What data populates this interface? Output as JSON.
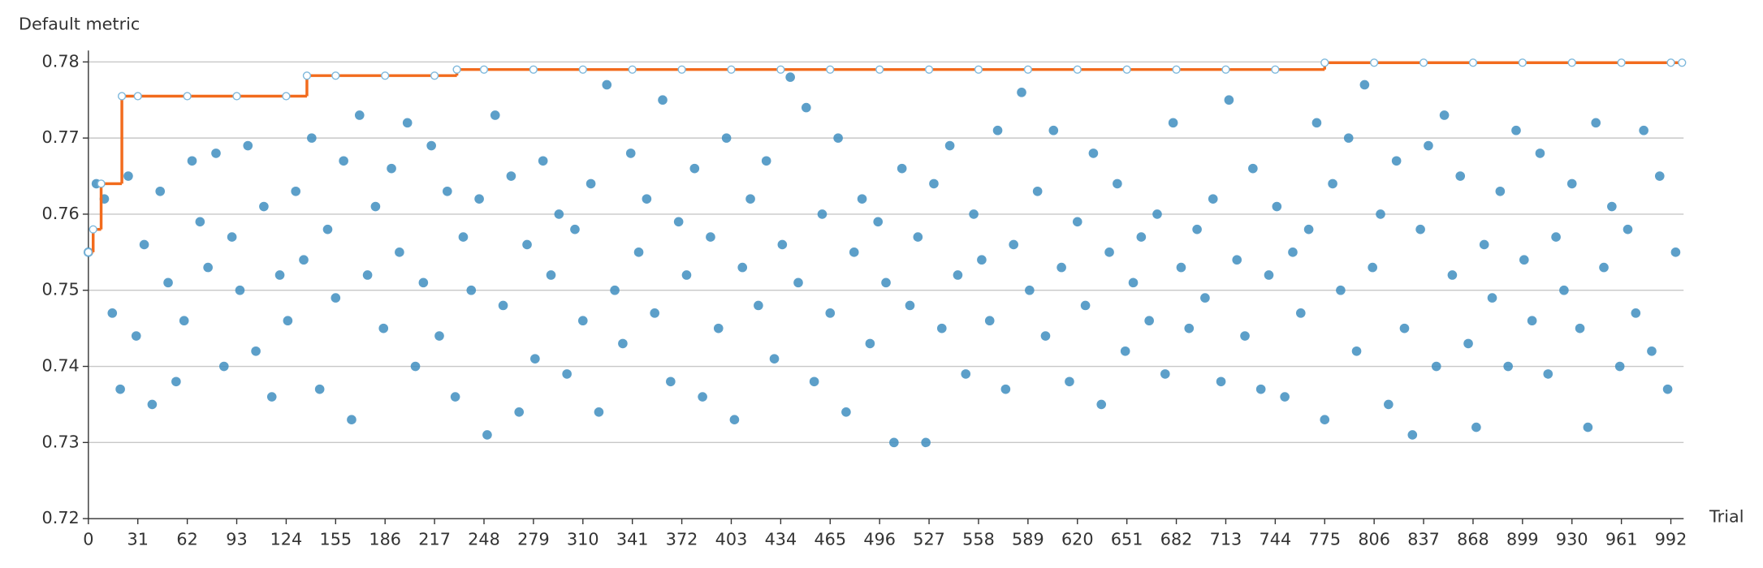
{
  "chart_data": {
    "type": "scatter",
    "y_label": "Default metric",
    "x_label": "Trial",
    "xlim": [
      0,
      1000
    ],
    "ylim": [
      0.72,
      0.7815
    ],
    "xticks": [
      0,
      31,
      62,
      93,
      124,
      155,
      186,
      217,
      248,
      279,
      310,
      341,
      372,
      403,
      434,
      465,
      496,
      527,
      558,
      589,
      620,
      651,
      682,
      713,
      744,
      775,
      806,
      837,
      868,
      899,
      930,
      961,
      992
    ],
    "yticks": [
      0.72,
      0.73,
      0.74,
      0.75,
      0.76,
      0.77,
      0.78
    ],
    "grid": true,
    "series": [
      {
        "type": "scatter",
        "color": "#3f8ec0",
        "x": [
          0,
          5,
          10,
          15,
          20,
          25,
          30,
          35,
          40,
          45,
          50,
          55,
          60,
          65,
          70,
          75,
          80,
          85,
          90,
          95,
          100,
          105,
          110,
          115,
          120,
          125,
          130,
          135,
          140,
          145,
          150,
          155,
          160,
          165,
          170,
          175,
          180,
          185,
          190,
          195,
          200,
          205,
          210,
          215,
          220,
          225,
          230,
          235,
          240,
          245,
          250,
          255,
          260,
          265,
          270,
          275,
          280,
          285,
          290,
          295,
          300,
          305,
          310,
          315,
          320,
          325,
          330,
          335,
          340,
          345,
          350,
          355,
          360,
          365,
          370,
          375,
          380,
          385,
          390,
          395,
          400,
          405,
          410,
          415,
          420,
          425,
          430,
          435,
          440,
          445,
          450,
          455,
          460,
          465,
          470,
          475,
          480,
          485,
          490,
          495,
          500,
          505,
          510,
          515,
          520,
          525,
          530,
          535,
          540,
          545,
          550,
          555,
          560,
          565,
          570,
          575,
          580,
          585,
          590,
          595,
          600,
          605,
          610,
          615,
          620,
          625,
          630,
          635,
          640,
          645,
          650,
          655,
          660,
          665,
          670,
          675,
          680,
          685,
          690,
          695,
          700,
          705,
          710,
          715,
          720,
          725,
          730,
          735,
          740,
          745,
          750,
          755,
          760,
          765,
          770,
          775,
          780,
          785,
          790,
          795,
          800,
          805,
          810,
          815,
          820,
          825,
          830,
          835,
          840,
          845,
          850,
          855,
          860,
          865,
          870,
          875,
          880,
          885,
          890,
          895,
          900,
          905,
          910,
          915,
          920,
          925,
          930,
          935,
          940,
          945,
          950,
          955,
          960,
          965,
          970,
          975,
          980,
          985,
          990,
          995
        ],
        "values": [
          0.755,
          0.764,
          0.762,
          0.747,
          0.737,
          0.765,
          0.744,
          0.756,
          0.735,
          0.763,
          0.751,
          0.738,
          0.746,
          0.767,
          0.759,
          0.753,
          0.768,
          0.74,
          0.757,
          0.75,
          0.769,
          0.742,
          0.761,
          0.736,
          0.752,
          0.746,
          0.763,
          0.754,
          0.77,
          0.737,
          0.758,
          0.749,
          0.767,
          0.733,
          0.773,
          0.752,
          0.761,
          0.745,
          0.766,
          0.755,
          0.772,
          0.74,
          0.751,
          0.769,
          0.744,
          0.763,
          0.736,
          0.757,
          0.75,
          0.762,
          0.731,
          0.773,
          0.748,
          0.765,
          0.734,
          0.756,
          0.741,
          0.767,
          0.752,
          0.76,
          0.739,
          0.758,
          0.746,
          0.764,
          0.734,
          0.777,
          0.75,
          0.743,
          0.768,
          0.755,
          0.762,
          0.747,
          0.775,
          0.738,
          0.759,
          0.752,
          0.766,
          0.736,
          0.757,
          0.745,
          0.77,
          0.733,
          0.753,
          0.762,
          0.748,
          0.767,
          0.741,
          0.756,
          0.778,
          0.751,
          0.774,
          0.738,
          0.76,
          0.747,
          0.77,
          0.734,
          0.755,
          0.762,
          0.743,
          0.759,
          0.751,
          0.73,
          0.766,
          0.748,
          0.757,
          0.73,
          0.764,
          0.745,
          0.769,
          0.752,
          0.739,
          0.76,
          0.754,
          0.746,
          0.771,
          0.737,
          0.756,
          0.776,
          0.75,
          0.763,
          0.744,
          0.771,
          0.753,
          0.738,
          0.759,
          0.748,
          0.768,
          0.735,
          0.755,
          0.764,
          0.742,
          0.751,
          0.757,
          0.746,
          0.76,
          0.739,
          0.772,
          0.753,
          0.745,
          0.758,
          0.749,
          0.762,
          0.738,
          0.775,
          0.754,
          0.744,
          0.766,
          0.737,
          0.752,
          0.761,
          0.736,
          0.755,
          0.747,
          0.758,
          0.772,
          0.733,
          0.764,
          0.75,
          0.77,
          0.742,
          0.777,
          0.753,
          0.76,
          0.735,
          0.767,
          0.745,
          0.731,
          0.758,
          0.769,
          0.74,
          0.773,
          0.752,
          0.765,
          0.743,
          0.732,
          0.756,
          0.749,
          0.763,
          0.74,
          0.771,
          0.754,
          0.746,
          0.768,
          0.739,
          0.757,
          0.75,
          0.764,
          0.745,
          0.732,
          0.772,
          0.753,
          0.761,
          0.74,
          0.758,
          0.747,
          0.771,
          0.742,
          0.765,
          0.737,
          0.755
        ]
      },
      {
        "type": "line",
        "color": "#f26b1d",
        "marker_color": "#7db8dc",
        "step": true,
        "x": [
          0,
          3,
          8,
          21,
          31,
          62,
          93,
          124,
          137,
          155,
          186,
          217,
          231,
          248,
          279,
          310,
          341,
          372,
          403,
          434,
          465,
          496,
          527,
          558,
          589,
          620,
          651,
          682,
          713,
          744,
          775,
          806,
          837,
          868,
          899,
          930,
          961,
          992,
          999
        ],
        "values": [
          0.755,
          0.758,
          0.764,
          0.7755,
          0.7755,
          0.7755,
          0.7755,
          0.7755,
          0.7782,
          0.7782,
          0.7782,
          0.7782,
          0.779,
          0.779,
          0.779,
          0.779,
          0.779,
          0.779,
          0.779,
          0.779,
          0.779,
          0.779,
          0.779,
          0.779,
          0.779,
          0.779,
          0.779,
          0.779,
          0.779,
          0.779,
          0.7799,
          0.7799,
          0.7799,
          0.7799,
          0.7799,
          0.7799,
          0.7799,
          0.7799,
          0.7799
        ]
      }
    ]
  }
}
